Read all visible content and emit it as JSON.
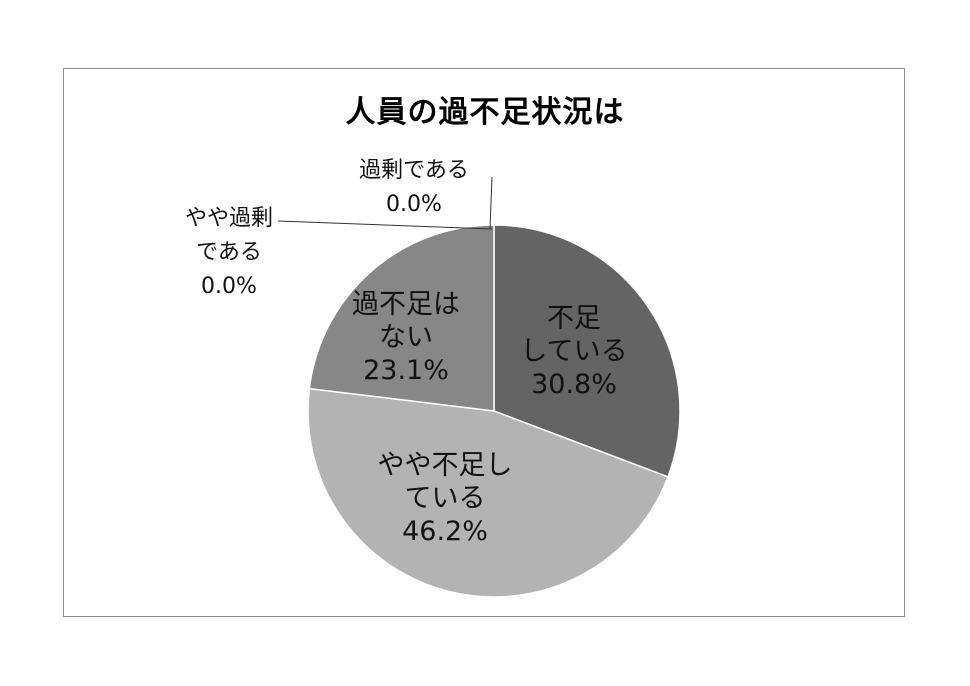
{
  "chart_data": {
    "type": "pie",
    "title": "人員の過不足状況は",
    "slices": [
      {
        "lines": [
          "過剰である"
        ],
        "pct_label": "0.0%",
        "value": 0.0,
        "color": "#5a5a5a"
      },
      {
        "lines": [
          "不足",
          "している"
        ],
        "pct_label": "30.8%",
        "value": 30.8,
        "color": "#646464"
      },
      {
        "lines": [
          "やや不足し",
          "ている"
        ],
        "pct_label": "46.2%",
        "value": 46.2,
        "color": "#b3b3b3"
      },
      {
        "lines": [
          "過不足は",
          "ない"
        ],
        "pct_label": "23.1%",
        "value": 23.1,
        "color": "#878787"
      },
      {
        "lines": [
          "やや過剰",
          "である"
        ],
        "pct_label": "0.0%",
        "value": 0.0,
        "color": "#5a5a5a"
      }
    ],
    "start_angle_deg": 0,
    "direction": "clockwise"
  }
}
